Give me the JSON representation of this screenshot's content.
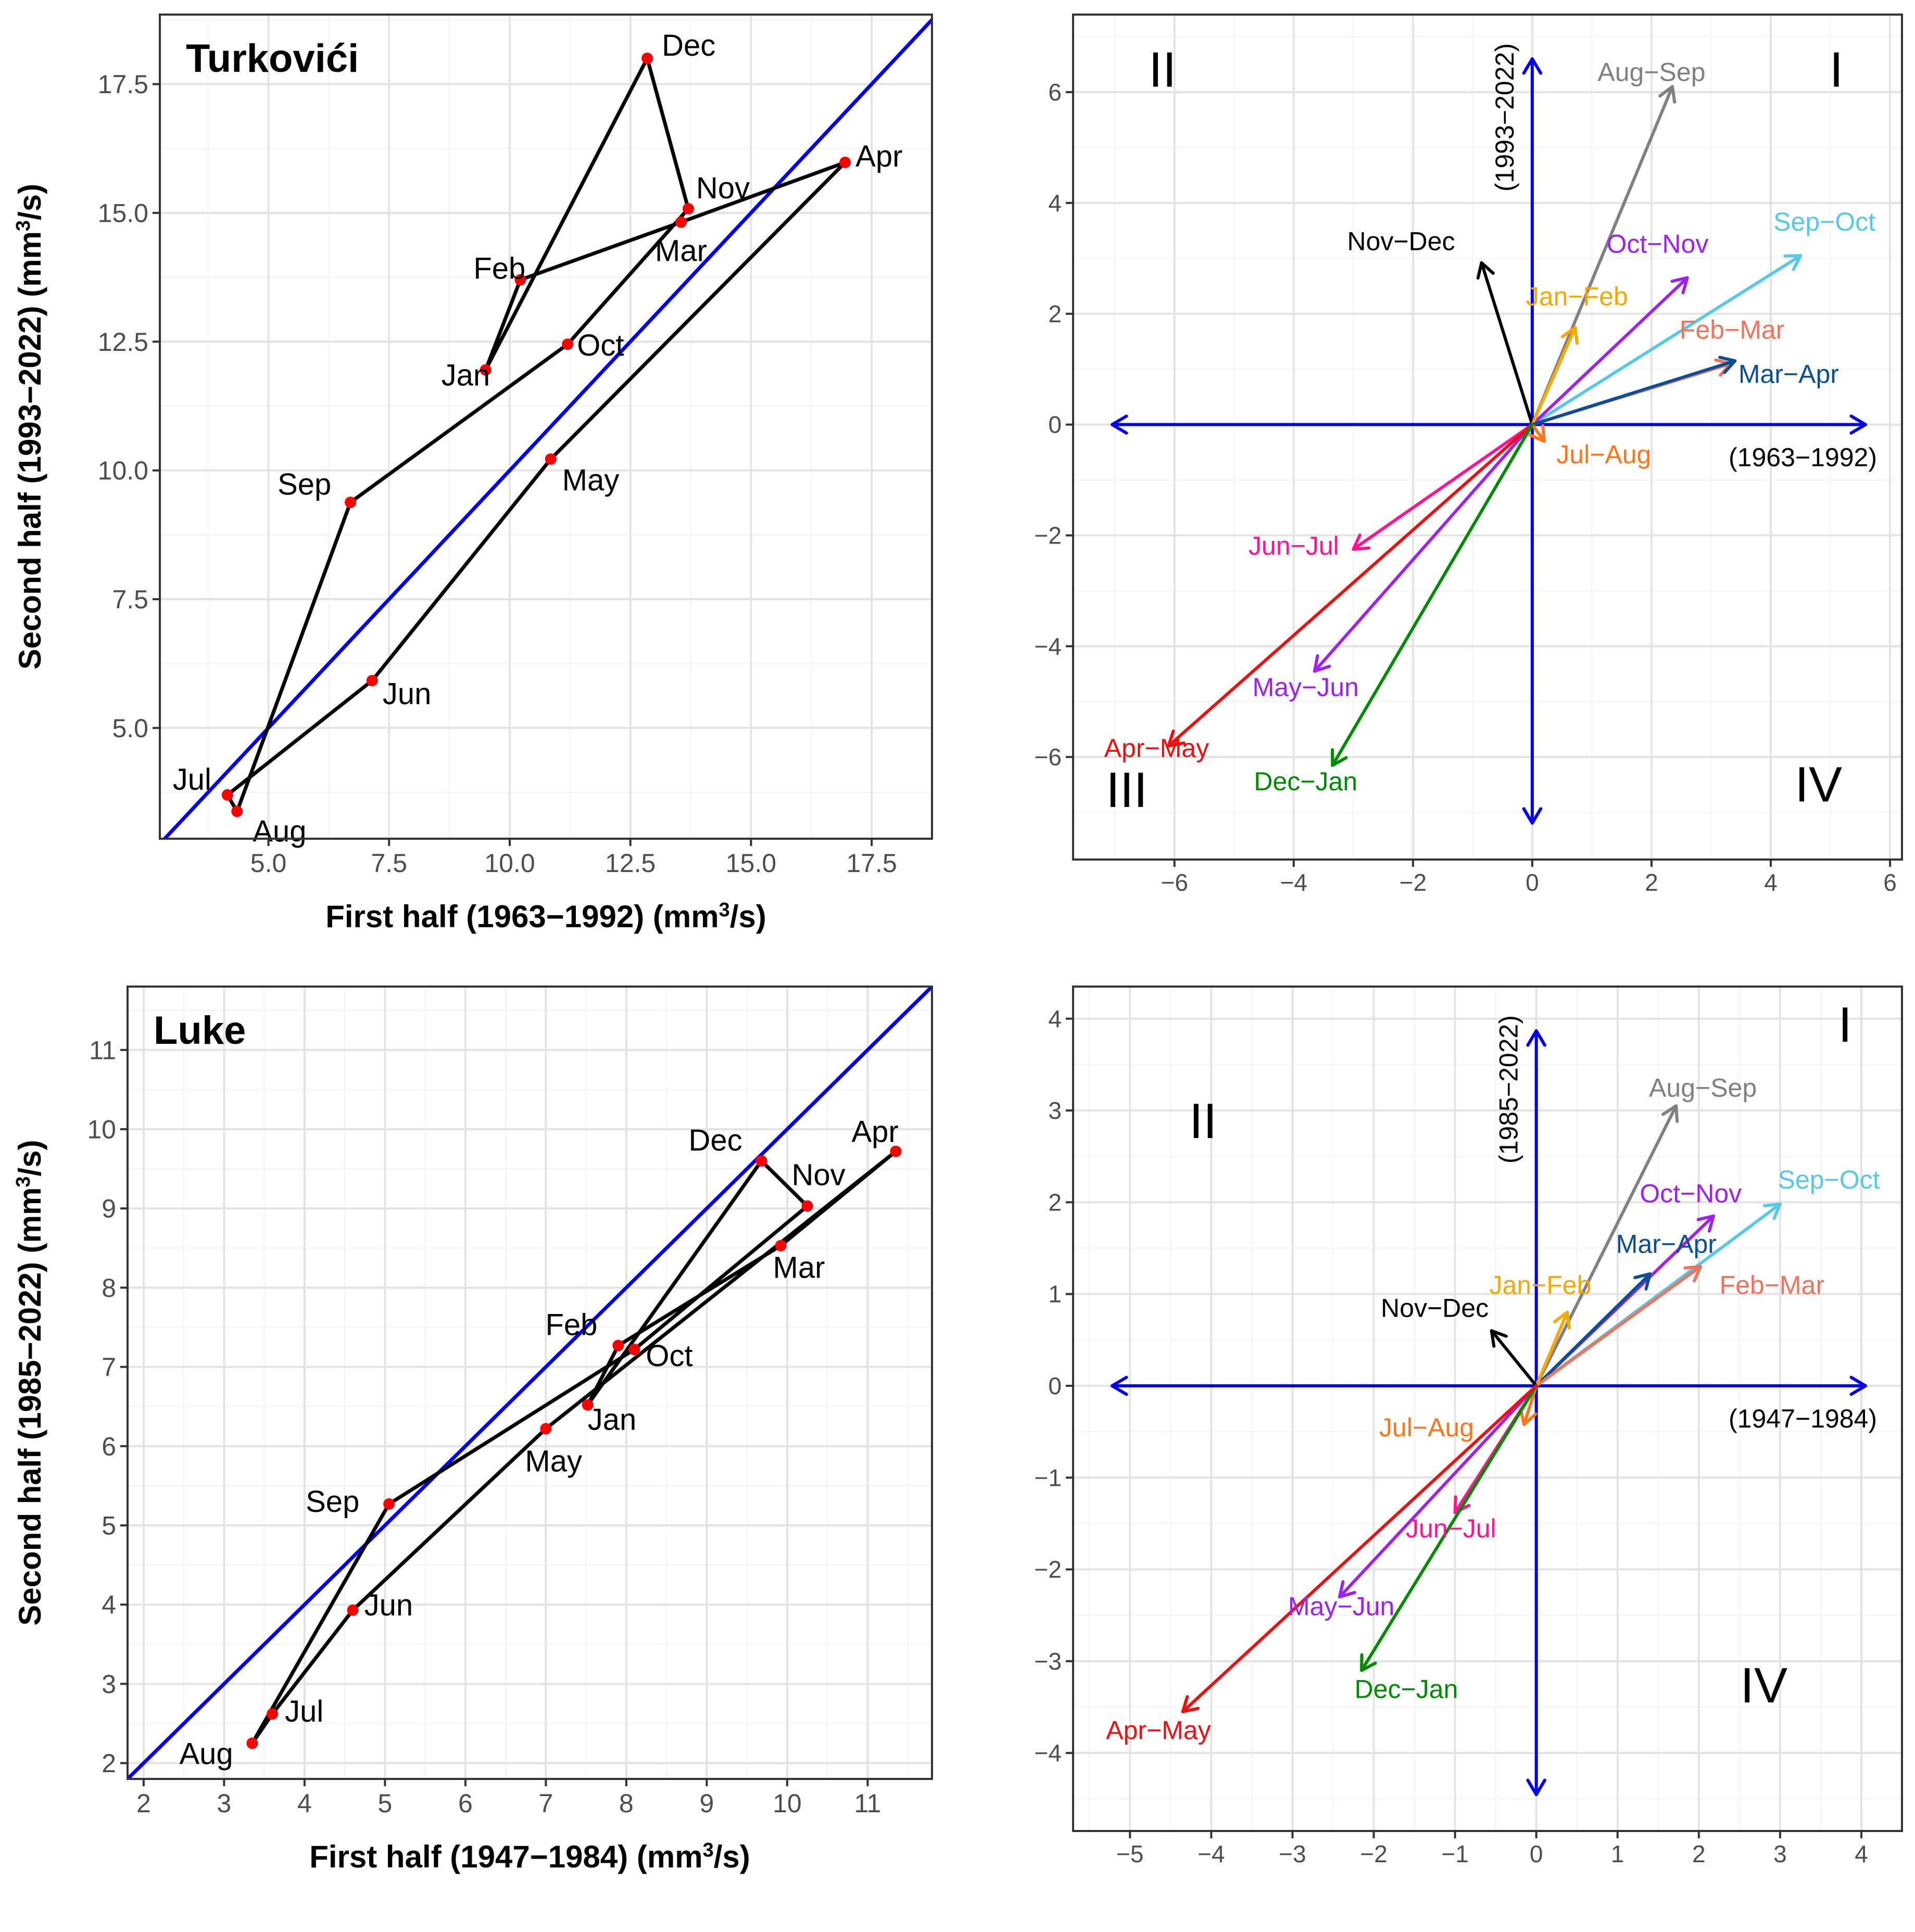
{
  "chart_data": [
    {
      "type": "line",
      "panel": "top-left",
      "station": "Turkovići",
      "xlabel_prefix": "First half (1963−1992) (mm",
      "ylabel_prefix": "Second half (1993−2022) (mm",
      "unit_sup": "3",
      "unit_suffix": "/s)",
      "xlim": [
        2.75,
        18.75
      ],
      "ylim": [
        2.85,
        18.85
      ],
      "xticks": [
        5.0,
        7.5,
        10.0,
        12.5,
        15.0,
        17.5
      ],
      "xtick_labels": [
        "5.0",
        "7.5",
        "10.0",
        "12.5",
        "15.0",
        "17.5"
      ],
      "yticks": [
        5.0,
        7.5,
        10.0,
        12.5,
        15.0,
        17.5
      ],
      "ytick_labels": [
        "5.0",
        "7.5",
        "10.0",
        "12.5",
        "15.0",
        "17.5"
      ],
      "minor_step": 1.25,
      "points": [
        {
          "month": "Jan",
          "x": 9.5,
          "y": 11.95
        },
        {
          "month": "Feb",
          "x": 10.22,
          "y": 13.7
        },
        {
          "month": "Mar",
          "x": 13.55,
          "y": 14.82
        },
        {
          "month": "Apr",
          "x": 16.95,
          "y": 15.98
        },
        {
          "month": "May",
          "x": 10.85,
          "y": 10.22
        },
        {
          "month": "Jun",
          "x": 7.15,
          "y": 5.92
        },
        {
          "month": "Jul",
          "x": 4.15,
          "y": 3.7
        },
        {
          "month": "Aug",
          "x": 4.35,
          "y": 3.38
        },
        {
          "month": "Sep",
          "x": 6.7,
          "y": 9.38
        },
        {
          "month": "Oct",
          "x": 11.2,
          "y": 12.45
        },
        {
          "month": "Nov",
          "x": 13.7,
          "y": 15.08
        },
        {
          "month": "Dec",
          "x": 12.85,
          "y": 18.0
        }
      ],
      "diagonal": "y = x",
      "colors": {
        "points": "#ff0000",
        "path": "#000000",
        "diagonal": "#0000ee"
      }
    },
    {
      "type": "vector",
      "panel": "top-right",
      "xlim": [
        -7.7,
        6.2
      ],
      "ylim": [
        -7.85,
        7.4
      ],
      "xticks": [
        -6,
        -4,
        -2,
        0,
        2,
        4,
        6
      ],
      "xtick_labels": [
        "−6",
        "−4",
        "−2",
        "0",
        "2",
        "4",
        "6"
      ],
      "yticks": [
        -6,
        -4,
        -2,
        0,
        2,
        4,
        6
      ],
      "ytick_labels": [
        "−6",
        "−4",
        "−2",
        "0",
        "2",
        "4",
        "6"
      ],
      "minor_step": 1,
      "axis_x_label": "(1963−1992)",
      "axis_y_label": "(1993−2022)",
      "quadrants": [
        {
          "label": "I",
          "x": 5.1,
          "y": 6.1
        },
        {
          "label": "II",
          "x": -6.2,
          "y": 6.1
        },
        {
          "label": "III",
          "x": -6.8,
          "y": -6.9
        },
        {
          "label": "IV",
          "x": 4.8,
          "y": -6.8
        }
      ],
      "vectors": [
        {
          "name": "Aug−Sep",
          "dx": 2.35,
          "dy": 6.1,
          "color": "#808080",
          "lx": 2.0,
          "ly": 6.2
        },
        {
          "name": "Sep−Oct",
          "dx": 4.5,
          "dy": 3.05,
          "color": "#56c8e8",
          "lx": 4.9,
          "ly": 3.5
        },
        {
          "name": "Oct−Nov",
          "dx": 2.6,
          "dy": 2.65,
          "color": "#a020f0",
          "lx": 2.1,
          "ly": 3.1
        },
        {
          "name": "Nov−Dec",
          "dx": -0.85,
          "dy": 2.92,
          "color": "#000000",
          "lx": -2.2,
          "ly": 3.15
        },
        {
          "name": "Jan−Feb",
          "dx": 0.72,
          "dy": 1.75,
          "color": "#f5a800",
          "lx": 0.75,
          "ly": 2.15
        },
        {
          "name": "Feb−Mar",
          "dx": 3.33,
          "dy": 1.1,
          "color": "#f2725a",
          "lx": 3.35,
          "ly": 1.55
        },
        {
          "name": "Mar−Apr",
          "dx": 3.4,
          "dy": 1.15,
          "color": "#0a4f96",
          "lx": 4.3,
          "ly": 0.75
        },
        {
          "name": "Jul−Aug",
          "dx": 0.2,
          "dy": -0.3,
          "color": "#ff7518",
          "lx": 1.2,
          "ly": -0.7
        },
        {
          "name": "Jun−Jul",
          "dx": -3.0,
          "dy": -2.25,
          "color": "#ff1493",
          "lx": -4.0,
          "ly": -2.35
        },
        {
          "name": "May−Jun",
          "dx": -3.65,
          "dy": -4.45,
          "color": "#a020f0",
          "lx": -3.8,
          "ly": -4.9
        },
        {
          "name": "Apr−May",
          "dx": -6.1,
          "dy": -5.8,
          "color": "#ee1010",
          "lx": -6.3,
          "ly": -6.0
        },
        {
          "name": "Dec−Jan",
          "dx": -3.35,
          "dy": -6.15,
          "color": "#008b00",
          "lx": -3.8,
          "ly": -6.6
        }
      ]
    },
    {
      "type": "line",
      "panel": "bottom-left",
      "station": "Luke",
      "xlabel_prefix": "First half (1947−1984) (mm",
      "ylabel_prefix": "Second half (1985−2022) (mm",
      "unit_sup": "3",
      "unit_suffix": "/s)",
      "xlim": [
        1.8,
        11.8
      ],
      "ylim": [
        1.8,
        11.8
      ],
      "xticks": [
        2,
        3,
        4,
        5,
        6,
        7,
        8,
        9,
        10,
        11
      ],
      "xtick_labels": [
        "2",
        "3",
        "4",
        "5",
        "6",
        "7",
        "8",
        "9",
        "10",
        "11"
      ],
      "yticks": [
        2,
        3,
        4,
        5,
        6,
        7,
        8,
        9,
        10,
        11
      ],
      "ytick_labels": [
        "2",
        "3",
        "4",
        "5",
        "6",
        "7",
        "8",
        "9",
        "10",
        "11"
      ],
      "minor_step": 0.5,
      "points": [
        {
          "month": "Jan",
          "x": 7.52,
          "y": 6.52
        },
        {
          "month": "Feb",
          "x": 7.9,
          "y": 7.27
        },
        {
          "month": "Mar",
          "x": 9.92,
          "y": 8.53
        },
        {
          "month": "Apr",
          "x": 11.35,
          "y": 9.72
        },
        {
          "month": "May",
          "x": 7.0,
          "y": 6.22
        },
        {
          "month": "Jun",
          "x": 4.6,
          "y": 3.93
        },
        {
          "month": "Jul",
          "x": 3.6,
          "y": 2.62
        },
        {
          "month": "Aug",
          "x": 3.35,
          "y": 2.25
        },
        {
          "month": "Sep",
          "x": 5.05,
          "y": 5.27
        },
        {
          "month": "Oct",
          "x": 8.1,
          "y": 7.22
        },
        {
          "month": "Nov",
          "x": 10.25,
          "y": 9.03
        },
        {
          "month": "Dec",
          "x": 9.68,
          "y": 9.6
        }
      ],
      "diagonal": "y = x",
      "colors": {
        "points": "#ff0000",
        "path": "#000000",
        "diagonal": "#0000ee"
      }
    },
    {
      "type": "vector",
      "panel": "bottom-right",
      "xlim": [
        -5.7,
        4.5
      ],
      "ylim": [
        -4.85,
        4.35
      ],
      "xticks": [
        -5,
        -4,
        -3,
        -2,
        -1,
        0,
        1,
        2,
        3,
        4
      ],
      "xtick_labels": [
        "−5",
        "−4",
        "−3",
        "−2",
        "−1",
        "0",
        "1",
        "2",
        "3",
        "4"
      ],
      "yticks": [
        -4,
        -3,
        -2,
        -1,
        0,
        1,
        2,
        3,
        4
      ],
      "ytick_labels": [
        "−4",
        "−3",
        "−2",
        "−1",
        "0",
        "1",
        "2",
        "3",
        "4"
      ],
      "minor_step": 0.5,
      "axis_x_label": "(1947−1984)",
      "axis_y_label": "(1985−2022)",
      "quadrants": [
        {
          "label": "I",
          "x": 3.8,
          "y": 3.75
        },
        {
          "label": "II",
          "x": -4.1,
          "y": 2.7
        },
        {
          "label": "IV",
          "x": 2.8,
          "y": -3.45
        }
      ],
      "vectors": [
        {
          "name": "Aug−Sep",
          "dx": 1.72,
          "dy": 3.05,
          "color": "#808080",
          "lx": 2.05,
          "ly": 3.15
        },
        {
          "name": "Sep−Oct",
          "dx": 3.0,
          "dy": 1.98,
          "color": "#56c8e8",
          "lx": 3.6,
          "ly": 2.15
        },
        {
          "name": "Oct−Nov",
          "dx": 2.18,
          "dy": 1.85,
          "color": "#a020f0",
          "lx": 1.9,
          "ly": 2.0
        },
        {
          "name": "Mar−Apr",
          "dx": 1.4,
          "dy": 1.22,
          "color": "#0a4f96",
          "lx": 1.6,
          "ly": 1.45
        },
        {
          "name": "Feb−Mar",
          "dx": 2.02,
          "dy": 1.3,
          "color": "#f2725a",
          "lx": 2.9,
          "ly": 1.0
        },
        {
          "name": "Jan−Feb",
          "dx": 0.38,
          "dy": 0.8,
          "color": "#f5a800",
          "lx": 0.05,
          "ly": 1.0
        },
        {
          "name": "Nov−Dec",
          "dx": -0.55,
          "dy": 0.6,
          "color": "#000000",
          "lx": -1.25,
          "ly": 0.75
        },
        {
          "name": "Jul−Aug",
          "dx": -0.15,
          "dy": -0.42,
          "color": "#ff7518",
          "lx": -1.35,
          "ly": -0.55
        },
        {
          "name": "Jun−Jul",
          "dx": -1.0,
          "dy": -1.38,
          "color": "#ff1493",
          "lx": -1.05,
          "ly": -1.65
        },
        {
          "name": "May−Jun",
          "dx": -2.42,
          "dy": -2.3,
          "color": "#a020f0",
          "lx": -2.4,
          "ly": -2.5
        },
        {
          "name": "Dec−Jan",
          "dx": -2.15,
          "dy": -3.1,
          "color": "#008b00",
          "lx": -1.6,
          "ly": -3.4
        },
        {
          "name": "Apr−May",
          "dx": -4.35,
          "dy": -3.55,
          "color": "#ee1010",
          "lx": -4.65,
          "ly": -3.85
        }
      ]
    }
  ]
}
